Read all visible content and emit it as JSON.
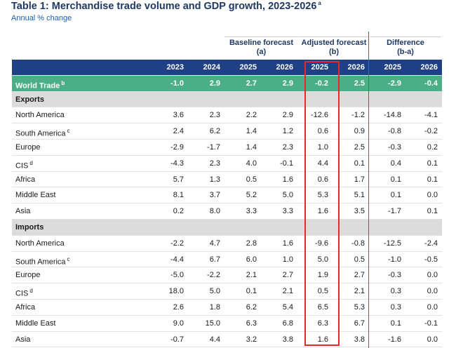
{
  "title": {
    "text": "Table 1: Merchandise trade volume and GDP growth, 2023-2026",
    "note": "a"
  },
  "subtitle": "Annual % change",
  "groups": [
    {
      "name": "Baseline forecast",
      "sub": "(a)"
    },
    {
      "name": "Adjusted forecast",
      "sub": "(b)"
    },
    {
      "name": "Difference",
      "sub": "(b-a)"
    }
  ],
  "columns": [
    "2023",
    "2024",
    "2025",
    "2026",
    "2025",
    "2026",
    "2025",
    "2026"
  ],
  "world": {
    "label": "World Trade",
    "note": "b",
    "values": [
      "-1.0",
      "2.9",
      "2.7",
      "2.9",
      "-0.2",
      "2.5",
      "-2.9",
      "-0.4"
    ]
  },
  "sections": [
    {
      "name": "Exports",
      "rows": [
        {
          "label": "North America",
          "values": [
            "3.6",
            "2.3",
            "2.2",
            "2.9",
            "-12.6",
            "-1.2",
            "-14.8",
            "-4.1"
          ]
        },
        {
          "label": "South America",
          "note": "c",
          "values": [
            "2.4",
            "6.2",
            "1.4",
            "1.2",
            "0.6",
            "0.9",
            "-0.8",
            "-0.2"
          ]
        },
        {
          "label": "Europe",
          "values": [
            "-2.9",
            "-1.7",
            "1.4",
            "2.3",
            "1.0",
            "2.5",
            "-0.3",
            "0.2"
          ]
        },
        {
          "label": "CIS",
          "note": "d",
          "values": [
            "-4.3",
            "2.3",
            "4.0",
            "-0.1",
            "4.4",
            "0.1",
            "0.4",
            "0.1"
          ]
        },
        {
          "label": "Africa",
          "values": [
            "5.7",
            "1.3",
            "0.5",
            "1.6",
            "0.6",
            "1.7",
            "0.1",
            "0.1"
          ]
        },
        {
          "label": "Middle East",
          "values": [
            "8.1",
            "3.7",
            "5.2",
            "5.0",
            "5.3",
            "5.1",
            "0.1",
            "0.0"
          ]
        },
        {
          "label": "Asia",
          "values": [
            "0.2",
            "8.0",
            "3.3",
            "3.3",
            "1.6",
            "3.5",
            "-1.7",
            "0.1"
          ]
        }
      ]
    },
    {
      "name": "Imports",
      "rows": [
        {
          "label": "North America",
          "values": [
            "-2.2",
            "4.7",
            "2.8",
            "1.6",
            "-9.6",
            "-0.8",
            "-12.5",
            "-2.4"
          ]
        },
        {
          "label": "South America",
          "note": "c",
          "values": [
            "-4.4",
            "6.7",
            "6.0",
            "1.0",
            "5.0",
            "0.5",
            "-1.0",
            "-0.5"
          ]
        },
        {
          "label": "Europe",
          "values": [
            "-5.0",
            "-2.2",
            "2.1",
            "2.7",
            "1.9",
            "2.7",
            "-0.3",
            "0.0"
          ]
        },
        {
          "label": "CIS",
          "note": "d",
          "values": [
            "18.0",
            "5.0",
            "0.1",
            "2.1",
            "0.5",
            "2.1",
            "0.3",
            "0.0"
          ]
        },
        {
          "label": "Africa",
          "values": [
            "2.6",
            "1.8",
            "6.2",
            "5.4",
            "6.5",
            "5.3",
            "0.3",
            "0.0"
          ]
        },
        {
          "label": "Middle East",
          "values": [
            "9.0",
            "15.0",
            "6.3",
            "6.8",
            "6.3",
            "6.7",
            "0.1",
            "-0.1"
          ]
        },
        {
          "label": "Asia",
          "values": [
            "-0.7",
            "4.4",
            "3.2",
            "3.8",
            "1.6",
            "3.8",
            "-1.6",
            "0.0"
          ]
        }
      ]
    }
  ]
}
